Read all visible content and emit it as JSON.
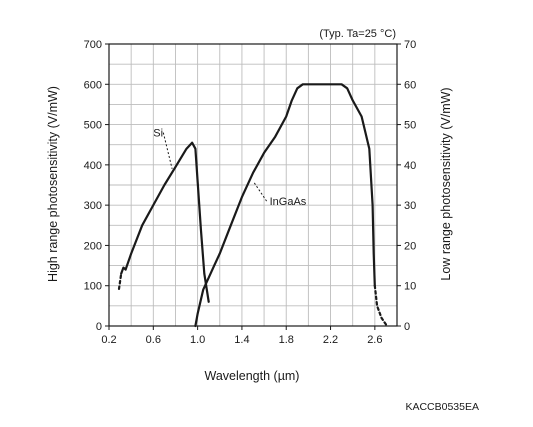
{
  "chart_data": {
    "type": "line",
    "note": "(Typ. Ta=25 °C)",
    "xlabel": "Wavelength (µm)",
    "ylabel_left": "High range photosensitivity (V/mW)",
    "ylabel_right": "Low range photosensitivity (V/mW)",
    "xlim": [
      0.2,
      2.8
    ],
    "ylim_left": [
      0,
      700
    ],
    "ylim_right": [
      0,
      70
    ],
    "x_ticks": [
      "0.2",
      "0.6",
      "1.0",
      "1.4",
      "1.8",
      "2.2",
      "2.6"
    ],
    "x_tick_values": [
      0.2,
      0.6,
      1.0,
      1.4,
      1.8,
      2.2,
      2.6
    ],
    "y_left_ticks": [
      "0",
      "100",
      "200",
      "300",
      "400",
      "500",
      "600",
      "700"
    ],
    "y_left_tick_values": [
      0,
      100,
      200,
      300,
      400,
      500,
      600,
      700
    ],
    "y_right_ticks": [
      "0",
      "10",
      "20",
      "30",
      "40",
      "50",
      "60",
      "70"
    ],
    "y_right_tick_values": [
      0,
      10,
      20,
      30,
      40,
      50,
      60,
      70
    ],
    "grid": true,
    "series": [
      {
        "name": "Si",
        "axis": "left",
        "dotted_points": [
          [
            0.29,
            92
          ],
          [
            0.31,
            130
          ]
        ],
        "points": [
          [
            0.31,
            130
          ],
          [
            0.33,
            145
          ],
          [
            0.35,
            140
          ],
          [
            0.4,
            180
          ],
          [
            0.5,
            250
          ],
          [
            0.6,
            300
          ],
          [
            0.7,
            350
          ],
          [
            0.8,
            395
          ],
          [
            0.9,
            440
          ],
          [
            0.95,
            455
          ],
          [
            0.98,
            440
          ],
          [
            1.0,
            360
          ],
          [
            1.03,
            240
          ],
          [
            1.06,
            130
          ],
          [
            1.1,
            60
          ]
        ]
      },
      {
        "name": "InGaAs",
        "axis": "right",
        "points": [
          [
            0.98,
            0
          ],
          [
            1.0,
            3
          ],
          [
            1.05,
            9
          ],
          [
            1.1,
            12
          ],
          [
            1.15,
            15
          ],
          [
            1.2,
            18
          ],
          [
            1.3,
            25
          ],
          [
            1.4,
            32
          ],
          [
            1.5,
            38
          ],
          [
            1.6,
            43
          ],
          [
            1.7,
            47
          ],
          [
            1.8,
            52
          ],
          [
            1.85,
            56
          ],
          [
            1.9,
            59
          ],
          [
            1.95,
            60
          ],
          [
            2.0,
            60
          ],
          [
            2.1,
            60
          ],
          [
            2.2,
            60
          ],
          [
            2.3,
            60
          ],
          [
            2.35,
            59
          ],
          [
            2.4,
            56
          ],
          [
            2.48,
            52
          ],
          [
            2.55,
            44
          ],
          [
            2.58,
            30
          ],
          [
            2.59,
            18
          ],
          [
            2.6,
            10
          ]
        ],
        "dotted_points": [
          [
            2.6,
            10
          ],
          [
            2.62,
            5
          ],
          [
            2.66,
            2
          ],
          [
            2.71,
            0
          ]
        ]
      }
    ],
    "annotations": [
      {
        "label": "Si",
        "series": "Si",
        "text_at": [
          0.6,
          470
        ],
        "point_to": [
          0.77,
          390
        ]
      },
      {
        "label": "InGaAs",
        "series": "InGaAs",
        "text_at": [
          1.65,
          300
        ],
        "point_to": [
          1.51,
          356
        ]
      }
    ],
    "footer_code": "KACCB0535EA"
  }
}
